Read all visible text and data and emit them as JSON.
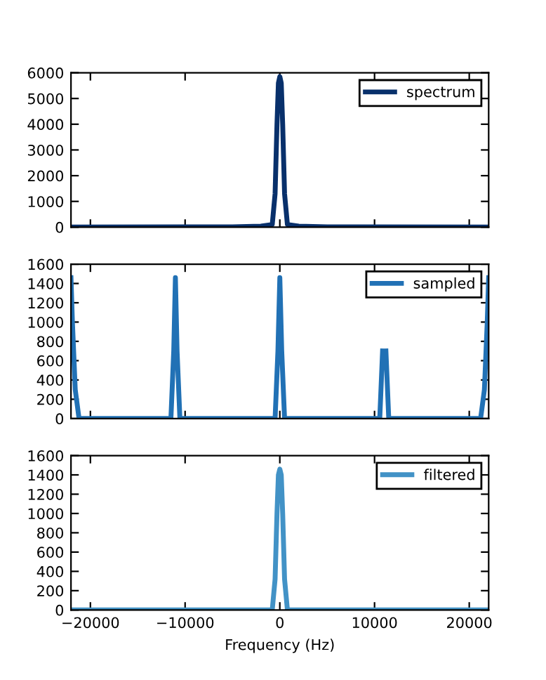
{
  "chart_data": [
    {
      "type": "line",
      "xlim": [
        -22050,
        22050
      ],
      "xticks": [
        -20000,
        -10000,
        0,
        10000,
        20000
      ],
      "ylim": [
        0,
        6000
      ],
      "yticks": [
        0,
        1000,
        2000,
        3000,
        4000,
        5000,
        6000
      ],
      "tick_labels": "y",
      "legend": "top right",
      "grid": false,
      "marker": "none",
      "line_style": "solid",
      "series": [
        {
          "name": "spectrum",
          "color": "#08306b",
          "x": [
            -22050,
            -5000,
            -2000,
            -800,
            -500,
            -300,
            -150,
            0,
            150,
            300,
            500,
            800,
            2000,
            5000,
            22050
          ],
          "values": [
            0,
            10,
            40,
            100,
            1300,
            4000,
            5600,
            5850,
            5600,
            4000,
            1300,
            100,
            40,
            10,
            0
          ]
        }
      ]
    },
    {
      "type": "line",
      "xlim": [
        -22050,
        22050
      ],
      "xticks": [
        -20000,
        -10000,
        0,
        10000,
        20000
      ],
      "ylim": [
        0,
        1600
      ],
      "yticks": [
        0,
        200,
        400,
        600,
        800,
        1000,
        1200,
        1400,
        1600
      ],
      "tick_labels": "y",
      "legend": "top right",
      "grid": false,
      "marker": "none",
      "line_style": "solid",
      "series": [
        {
          "name": "sampled",
          "color": "#2171b5",
          "x": [
            -22050,
            -21900,
            -21600,
            -21200,
            -12000,
            -11500,
            -11200,
            -11025,
            -10850,
            -10550,
            -10000,
            -1000,
            -500,
            -200,
            0,
            200,
            500,
            1000,
            10000,
            10550,
            10850,
            11025,
            11200,
            11500,
            12000,
            21200,
            21600,
            21900,
            22050
          ],
          "values": [
            1460,
            1000,
            300,
            0,
            0,
            0,
            700,
            1460,
            700,
            0,
            0,
            0,
            0,
            700,
            1460,
            700,
            0,
            0,
            0,
            0,
            700,
            null,
            700,
            0,
            0,
            0,
            300,
            1000,
            1460
          ]
        }
      ]
    },
    {
      "type": "line",
      "xlabel": "Frequency (Hz)",
      "xlim": [
        -22050,
        22050
      ],
      "xticks": [
        -20000,
        -10000,
        0,
        10000,
        20000
      ],
      "ylim": [
        0,
        1600
      ],
      "yticks": [
        0,
        200,
        400,
        600,
        800,
        1000,
        1200,
        1400,
        1600
      ],
      "legend": "top right",
      "grid": false,
      "marker": "none",
      "line_style": "solid",
      "series": [
        {
          "name": "filtered",
          "color": "#4292c6",
          "x": [
            -22050,
            -5000,
            -2000,
            -800,
            -500,
            -300,
            -150,
            0,
            150,
            300,
            500,
            800,
            2000,
            5000,
            22050
          ],
          "values": [
            0,
            0,
            0,
            0,
            320,
            1000,
            1400,
            1460,
            1400,
            1000,
            320,
            0,
            0,
            0,
            0
          ]
        }
      ]
    }
  ]
}
